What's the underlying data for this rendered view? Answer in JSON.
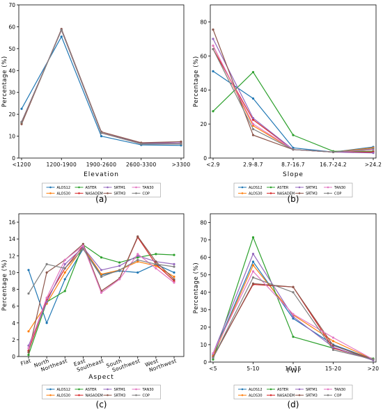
{
  "colors": {
    "ALOS12": "#1f77b4",
    "ALOS30": "#ff7f0e",
    "ASTER": "#2ca02c",
    "NASADEM": "#d62728",
    "SRTM1": "#9467bd",
    "SRTM3": "#8c564b",
    "TAN30": "#e377c2",
    "COP": "#7f7f7f"
  },
  "legend_rows": [
    [
      "ALOS12",
      "ASTER",
      "SRTM1",
      "TAN30"
    ],
    [
      "ALOS30",
      "NASADEM",
      "SRTM3",
      "COP"
    ]
  ],
  "chart_data": [
    {
      "panel_label": "(a)",
      "type": "line",
      "xlabel": "Elevation",
      "ylabel": "Percentage (%)",
      "categories": [
        "<1200",
        "1200-1900",
        "1900-2600",
        "2600-3300",
        ">3300"
      ],
      "ylim": [
        0,
        70
      ],
      "yticks": [
        0,
        10,
        20,
        30,
        40,
        50,
        60,
        70
      ],
      "grid": false,
      "legend": "bottom",
      "series": [
        {
          "name": "ALOS12",
          "values": [
            22.5,
            55.5,
            10,
            6,
            5.8
          ]
        },
        {
          "name": "ALOS30",
          "values": [
            16.5,
            58.5,
            11.5,
            6.5,
            6.5
          ]
        },
        {
          "name": "ASTER",
          "values": [
            16,
            58.5,
            11.5,
            6.5,
            6.5
          ]
        },
        {
          "name": "NASADEM",
          "values": [
            16.5,
            58.5,
            11.5,
            6.8,
            7
          ]
        },
        {
          "name": "SRTM1",
          "values": [
            16.5,
            58.5,
            11.5,
            6.8,
            7
          ]
        },
        {
          "name": "SRTM3",
          "values": [
            15.5,
            59,
            12,
            7,
            7.5
          ]
        },
        {
          "name": "TAN30",
          "values": [
            16.5,
            58.5,
            11.5,
            6.5,
            6.5
          ]
        },
        {
          "name": "COP",
          "values": [
            16.5,
            58.5,
            11.5,
            6.5,
            6.5
          ]
        }
      ]
    },
    {
      "panel_label": "(b)",
      "type": "line",
      "xlabel": "Slope",
      "ylabel": "Percentage (%)",
      "categories": [
        "<2.9",
        "2.9-8.7",
        "8.7-16.7",
        "16.7-24.2",
        ">24.2"
      ],
      "ylim": [
        0,
        90
      ],
      "yticks": [
        0,
        20,
        40,
        60,
        80
      ],
      "grid": false,
      "legend": "bottom",
      "series": [
        {
          "name": "ALOS12",
          "values": [
            51,
            35,
            6,
            3.5,
            6.5
          ]
        },
        {
          "name": "ALOS30",
          "values": [
            66,
            19,
            5,
            3.5,
            6
          ]
        },
        {
          "name": "ASTER",
          "values": [
            27.5,
            50.5,
            13.5,
            4,
            4
          ]
        },
        {
          "name": "NASADEM",
          "values": [
            64,
            22.5,
            5,
            3.5,
            3.5
          ]
        },
        {
          "name": "SRTM1",
          "values": [
            70,
            23.5,
            5,
            3.5,
            3
          ]
        },
        {
          "name": "SRTM3",
          "values": [
            75.5,
            13.5,
            5,
            3.5,
            5
          ]
        },
        {
          "name": "TAN30",
          "values": [
            66,
            20,
            5,
            3.5,
            5
          ]
        },
        {
          "name": "COP",
          "values": [
            64,
            17,
            5,
            3.5,
            5.5
          ]
        }
      ]
    },
    {
      "panel_label": "(c)",
      "type": "line",
      "xlabel": "Aspect",
      "ylabel": "Percentage (%)",
      "categories": [
        "Flat",
        "North",
        "Northeast",
        "East",
        "Southeast",
        "South",
        "Southwest",
        "West",
        "Northwest"
      ],
      "ylim": [
        0,
        17
      ],
      "yticks": [
        0,
        2,
        4,
        6,
        8,
        10,
        12,
        14,
        16
      ],
      "grid": false,
      "legend": "bottom",
      "series": [
        {
          "name": "ALOS12",
          "values": [
            10.3,
            4,
            9.2,
            12.8,
            9.7,
            10.2,
            10,
            11,
            10
          ]
        },
        {
          "name": "ALOS30",
          "values": [
            3,
            6.3,
            10,
            13,
            9.8,
            10.3,
            11.3,
            10.8,
            9.5
          ]
        },
        {
          "name": "ASTER",
          "values": [
            0.2,
            6.5,
            7.8,
            13.3,
            11.8,
            11.2,
            11.8,
            12.2,
            12.1
          ]
        },
        {
          "name": "NASADEM",
          "values": [
            0.7,
            6.8,
            10.5,
            13.2,
            7.8,
            9.3,
            14.2,
            11,
            9
          ]
        },
        {
          "name": "SRTM1",
          "values": [
            1.3,
            6.5,
            11,
            13,
            10.3,
            10.8,
            12,
            11.3,
            11
          ]
        },
        {
          "name": "SRTM3",
          "values": [
            0.5,
            10,
            11.5,
            13.4,
            7.8,
            9.3,
            14.3,
            11.3,
            9.2
          ]
        },
        {
          "name": "TAN30",
          "values": [
            1,
            7,
            11.5,
            13.2,
            7.6,
            9.2,
            12.2,
            10.5,
            8.8
          ]
        },
        {
          "name": "COP",
          "values": [
            7.5,
            11,
            10.5,
            12.8,
            9.5,
            10.3,
            11.5,
            11,
            10.7
          ]
        }
      ]
    },
    {
      "panel_label": "(d)",
      "type": "line",
      "xlabel": "TWI",
      "ylabel": "Percentage (%)",
      "categories": [
        "<5",
        "5-10",
        "10-15",
        "15-20",
        ">20"
      ],
      "ylim": [
        0,
        85
      ],
      "yticks": [
        0,
        10,
        20,
        30,
        40,
        50,
        60,
        70,
        80
      ],
      "grid": false,
      "legend": "bottom",
      "series": [
        {
          "name": "ALOS12",
          "values": [
            4,
            57.5,
            25,
            10,
            1.5
          ]
        },
        {
          "name": "ALOS30",
          "values": [
            3.5,
            55.5,
            27,
            12,
            1.5
          ]
        },
        {
          "name": "ASTER",
          "values": [
            1.5,
            71.5,
            14.5,
            8,
            2
          ]
        },
        {
          "name": "NASADEM",
          "values": [
            3,
            44.5,
            43,
            8,
            1.5
          ]
        },
        {
          "name": "SRTM1",
          "values": [
            5,
            62,
            26,
            8.5,
            1
          ]
        },
        {
          "name": "SRTM3",
          "values": [
            2.5,
            45,
            43,
            9.5,
            1.5
          ]
        },
        {
          "name": "TAN30",
          "values": [
            5,
            52,
            27.5,
            14,
            1.5
          ]
        },
        {
          "name": "COP",
          "values": [
            2.5,
            48.5,
            40,
            7,
            1.5
          ]
        }
      ]
    }
  ]
}
